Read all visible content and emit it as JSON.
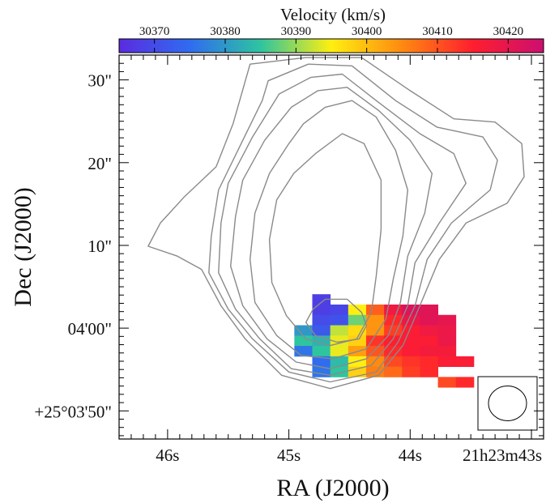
{
  "chart_data": {
    "type": "heatmap",
    "title": "",
    "xlabel": "RA (J2000)",
    "ylabel": "Dec (J2000)",
    "x_ticks": [
      {
        "ra_s": 46,
        "label": "46s"
      },
      {
        "ra_s": 45,
        "label": "45s"
      },
      {
        "ra_s": 44,
        "label": "44s"
      },
      {
        "ra_s": 43,
        "label": "21h23m43s"
      }
    ],
    "y_ticks": [
      {
        "dec_arcsec": 30,
        "label": "30\""
      },
      {
        "dec_arcsec": 20,
        "label": "20\""
      },
      {
        "dec_arcsec": 10,
        "label": "10\""
      },
      {
        "dec_arcsec": 0,
        "label": "04'00\""
      },
      {
        "dec_arcsec": -10,
        "label": "+25°03'50\""
      }
    ],
    "x_range_ra_s": [
      46.4,
      42.9
    ],
    "y_range_dec_arcsec": [
      -13.4,
      33.0
    ],
    "colorbar": {
      "label": "Velocity (km/s)",
      "range": [
        30365,
        30425
      ],
      "ticks": [
        30370,
        30380,
        30390,
        30400,
        30410,
        30420
      ],
      "colormap": [
        "#5b2be0",
        "#2f6cf0",
        "#2ec4a0",
        "#ffef10",
        "#ff8a10",
        "#ff1e2e",
        "#cc0f70"
      ]
    },
    "velocity_map": {
      "ra0_s": 44.955,
      "dec0_arcsec": 4.1,
      "cell_ra_s": 0.148,
      "cell_dec_arcsec": 1.25,
      "rows": [
        [
          30368,
          null,
          null,
          null,
          null,
          null,
          null,
          null
        ],
        [
          30368,
          30369,
          30395,
          30409,
          30418,
          30422,
          30421,
          null
        ],
        [
          30370,
          30371,
          30388,
          30404,
          30414,
          30419,
          30421,
          30420
        ],
        [
          30380,
          30372,
          30392,
          30397,
          30404,
          30412,
          30416,
          30418,
          30419
        ],
        [
          30385,
          30383,
          30394,
          30398,
          30413,
          30415,
          30416,
          30416,
          30419
        ],
        [
          30376,
          30385,
          30394,
          30403,
          30410,
          30414,
          30416,
          30417,
          30417
        ],
        [
          30375,
          30384,
          30395,
          30405,
          30411,
          30413,
          30414,
          30416,
          30416
        ],
        [
          30376,
          30385,
          30398,
          30406,
          30408,
          30412,
          30414,
          null
        ],
        [
          null,
          null,
          null,
          null,
          30411,
          30414,
          null,
          null
        ]
      ],
      "row_start_col": [
        1,
        1,
        1,
        0,
        0,
        0,
        1,
        1,
        4
      ]
    },
    "contours": [
      [
        [
          45.32,
          31.9
        ],
        [
          44.86,
          32.7
        ],
        [
          44.4,
          32.7
        ],
        [
          44.0,
          28.7
        ],
        [
          43.64,
          25.3
        ],
        [
          43.3,
          24.9
        ],
        [
          43.08,
          22.3
        ],
        [
          43.06,
          18.3
        ],
        [
          43.2,
          15.1
        ],
        [
          43.54,
          12.7
        ],
        [
          43.76,
          8.3
        ],
        [
          43.92,
          2.7
        ],
        [
          44.06,
          -2.1
        ],
        [
          44.26,
          -5.7
        ],
        [
          44.66,
          -7.3
        ],
        [
          45.06,
          -5.7
        ],
        [
          45.36,
          -1.3
        ],
        [
          45.56,
          2.7
        ],
        [
          45.72,
          7.1
        ],
        [
          45.92,
          8.7
        ],
        [
          46.16,
          9.9
        ],
        [
          46.06,
          12.7
        ],
        [
          45.86,
          15.9
        ],
        [
          45.6,
          19.5
        ],
        [
          45.46,
          24.7
        ],
        [
          45.32,
          31.9
        ]
      ],
      [
        [
          45.17,
          29.9
        ],
        [
          44.84,
          31.9
        ],
        [
          44.48,
          31.7
        ],
        [
          44.12,
          27.5
        ],
        [
          43.78,
          24.3
        ],
        [
          43.4,
          23.1
        ],
        [
          43.28,
          20.3
        ],
        [
          43.34,
          16.7
        ],
        [
          43.66,
          12.7
        ],
        [
          43.86,
          8.3
        ],
        [
          43.96,
          2.7
        ],
        [
          44.1,
          -1.7
        ],
        [
          44.28,
          -5.3
        ],
        [
          44.66,
          -6.5
        ],
        [
          45.0,
          -5.3
        ],
        [
          45.3,
          -1.3
        ],
        [
          45.5,
          2.3
        ],
        [
          45.66,
          6.7
        ],
        [
          45.64,
          11.1
        ],
        [
          45.58,
          16.7
        ],
        [
          45.38,
          22.7
        ],
        [
          45.22,
          27.5
        ],
        [
          45.17,
          29.9
        ]
      ],
      [
        [
          45.08,
          28.3
        ],
        [
          44.82,
          30.3
        ],
        [
          44.56,
          30.7
        ],
        [
          44.28,
          27.5
        ],
        [
          43.92,
          23.5
        ],
        [
          43.64,
          21.1
        ],
        [
          43.54,
          17.5
        ],
        [
          43.76,
          12.7
        ],
        [
          43.96,
          7.9
        ],
        [
          44.02,
          2.7
        ],
        [
          44.14,
          -1.3
        ],
        [
          44.32,
          -4.5
        ],
        [
          44.66,
          -5.7
        ],
        [
          44.98,
          -4.9
        ],
        [
          45.24,
          -1.3
        ],
        [
          45.44,
          2.3
        ],
        [
          45.58,
          6.7
        ],
        [
          45.56,
          12.7
        ],
        [
          45.5,
          17.5
        ],
        [
          45.3,
          23.1
        ],
        [
          45.08,
          28.3
        ]
      ],
      [
        [
          44.98,
          26.7
        ],
        [
          44.76,
          28.7
        ],
        [
          44.52,
          29.1
        ],
        [
          44.26,
          26.3
        ],
        [
          44.0,
          22.7
        ],
        [
          43.82,
          18.7
        ],
        [
          43.88,
          13.9
        ],
        [
          44.02,
          8.7
        ],
        [
          44.08,
          3.1
        ],
        [
          44.18,
          -0.9
        ],
        [
          44.36,
          -3.7
        ],
        [
          44.66,
          -4.9
        ],
        [
          44.94,
          -4.1
        ],
        [
          45.18,
          -1.3
        ],
        [
          45.38,
          2.7
        ],
        [
          45.48,
          7.5
        ],
        [
          45.44,
          13.5
        ],
        [
          45.38,
          17.9
        ],
        [
          45.2,
          22.7
        ],
        [
          44.98,
          26.7
        ]
      ],
      [
        [
          44.88,
          24.7
        ],
        [
          44.7,
          26.7
        ],
        [
          44.48,
          27.5
        ],
        [
          44.28,
          25.5
        ],
        [
          44.12,
          21.5
        ],
        [
          44.02,
          16.7
        ],
        [
          44.06,
          11.1
        ],
        [
          44.14,
          5.9
        ],
        [
          44.2,
          1.1
        ],
        [
          44.36,
          -2.5
        ],
        [
          44.64,
          -3.7
        ],
        [
          44.9,
          -3.3
        ],
        [
          45.1,
          -0.9
        ],
        [
          45.28,
          3.1
        ],
        [
          45.32,
          8.3
        ],
        [
          45.28,
          13.9
        ],
        [
          45.16,
          18.7
        ],
        [
          45.0,
          22.3
        ],
        [
          44.88,
          24.7
        ]
      ],
      [
        [
          44.78,
          21.1
        ],
        [
          44.56,
          23.5
        ],
        [
          44.38,
          22.3
        ],
        [
          44.24,
          17.9
        ],
        [
          44.24,
          11.9
        ],
        [
          44.28,
          6.3
        ],
        [
          44.32,
          1.9
        ],
        [
          44.44,
          -1.3
        ],
        [
          44.66,
          -2.1
        ],
        [
          44.86,
          -1.3
        ],
        [
          45.02,
          1.5
        ],
        [
          45.14,
          5.5
        ],
        [
          45.16,
          10.7
        ],
        [
          45.1,
          15.5
        ],
        [
          44.96,
          18.7
        ],
        [
          44.78,
          21.1
        ]
      ],
      [
        [
          44.8,
          2.3
        ],
        [
          44.7,
          3.5
        ],
        [
          44.52,
          3.5
        ],
        [
          44.4,
          1.9
        ],
        [
          44.36,
          0.3
        ],
        [
          44.42,
          -1.3
        ],
        [
          44.6,
          -1.7
        ],
        [
          44.78,
          -0.9
        ],
        [
          44.86,
          0.7
        ],
        [
          44.8,
          2.3
        ]
      ]
    ],
    "beam": {
      "major_arcsec": 4.6,
      "minor_arcsec": 4.2,
      "pa_deg": 90
    }
  }
}
